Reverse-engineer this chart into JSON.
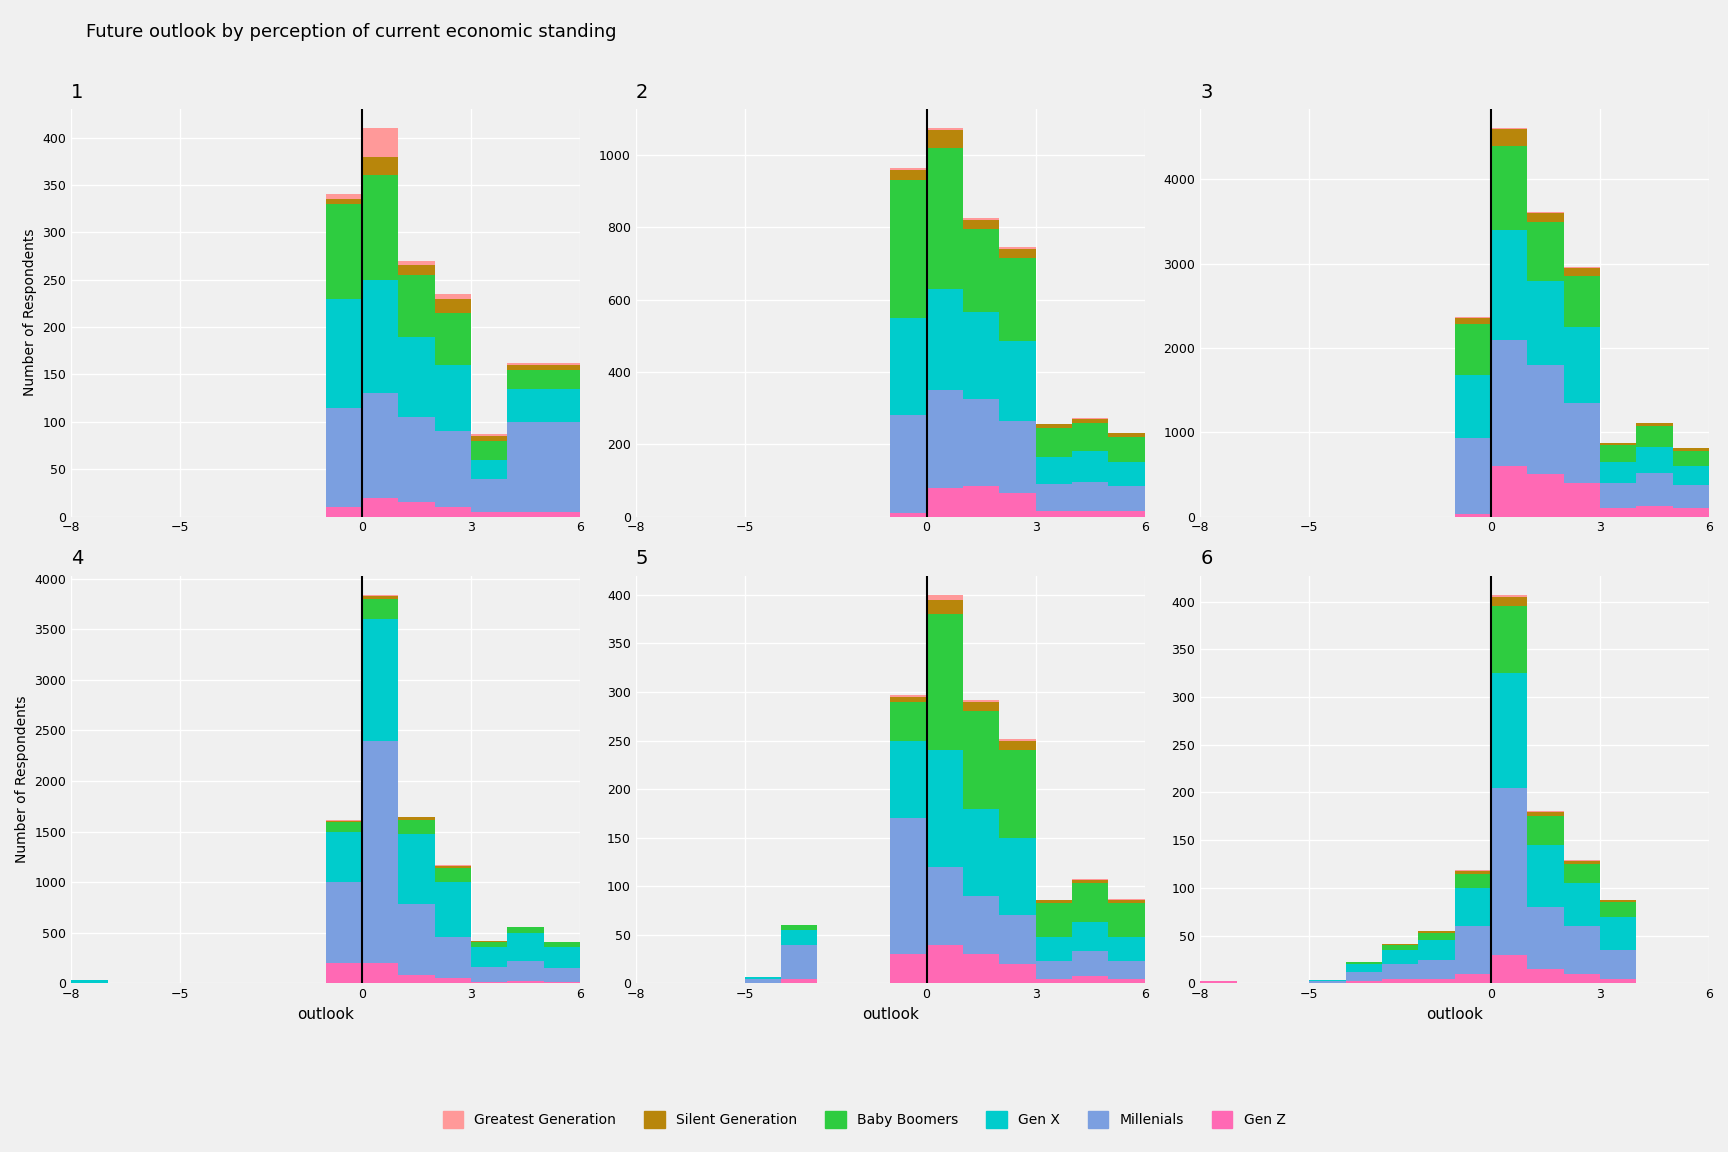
{
  "title": "Future outlook by perception of current economic standing",
  "xlabel": "outlook",
  "ylabel": "Number of Respondents",
  "background_color": "#F0F0F0",
  "grid_color": "#FFFFFF",
  "xlim": [
    -8,
    6
  ],
  "xticks": [
    -8,
    -5,
    0,
    3,
    6
  ],
  "colors": {
    "Gen Z": "#FF69B4",
    "Millenials": "#7B9FE0",
    "Gen X": "#00CCCC",
    "Baby Boomers": "#2ECC40",
    "Silent Generation": "#B8860B",
    "Greatest Generation": "#FF9999"
  },
  "generations_order": [
    "Gen Z",
    "Millenials",
    "Gen X",
    "Baby Boomers",
    "Silent Generation",
    "Greatest Generation"
  ],
  "panel_data": {
    "1": {
      "bins": [
        -1,
        0,
        1,
        2,
        3,
        4,
        5
      ],
      "Gen Z": [
        10,
        20,
        15,
        10,
        5,
        5,
        5
      ],
      "Millenials": [
        105,
        110,
        90,
        80,
        35,
        95,
        95
      ],
      "Gen X": [
        115,
        120,
        85,
        70,
        20,
        35,
        35
      ],
      "Baby Boomers": [
        100,
        110,
        65,
        55,
        20,
        20,
        20
      ],
      "Silent Generation": [
        5,
        20,
        10,
        15,
        5,
        5,
        5
      ],
      "Greatest Generation": [
        5,
        30,
        5,
        5,
        2,
        2,
        2
      ]
    },
    "2": {
      "bins": [
        -1,
        0,
        1,
        2,
        3,
        4,
        5
      ],
      "Gen Z": [
        10,
        80,
        85,
        65,
        15,
        15,
        15
      ],
      "Millenials": [
        270,
        270,
        240,
        200,
        75,
        80,
        70
      ],
      "Gen X": [
        270,
        280,
        240,
        220,
        75,
        85,
        65
      ],
      "Baby Boomers": [
        380,
        390,
        230,
        230,
        80,
        80,
        70
      ],
      "Silent Generation": [
        30,
        50,
        25,
        25,
        10,
        10,
        10
      ],
      "Greatest Generation": [
        5,
        5,
        5,
        5,
        2,
        2,
        2
      ]
    },
    "3": {
      "bins": [
        -1,
        0,
        1,
        2,
        3,
        4,
        5
      ],
      "Gen Z": [
        30,
        600,
        500,
        400,
        100,
        120,
        100
      ],
      "Millenials": [
        900,
        1500,
        1300,
        950,
        300,
        400,
        280
      ],
      "Gen X": [
        750,
        1300,
        1000,
        900,
        250,
        300,
        220
      ],
      "Baby Boomers": [
        600,
        1000,
        700,
        600,
        200,
        250,
        180
      ],
      "Silent Generation": [
        80,
        200,
        100,
        100,
        25,
        40,
        30
      ],
      "Greatest Generation": [
        10,
        10,
        10,
        10,
        3,
        5,
        5
      ]
    },
    "4": {
      "bins": [
        -8,
        -1,
        0,
        1,
        2,
        3,
        4,
        5
      ],
      "Gen Z": [
        0,
        200,
        200,
        80,
        55,
        12,
        20,
        10
      ],
      "Millenials": [
        5,
        800,
        2200,
        700,
        400,
        150,
        200,
        145
      ],
      "Gen X": [
        25,
        500,
        1200,
        700,
        550,
        200,
        280,
        200
      ],
      "Baby Boomers": [
        5,
        100,
        200,
        140,
        140,
        45,
        55,
        50
      ],
      "Silent Generation": [
        0,
        10,
        30,
        20,
        20,
        8,
        5,
        5
      ],
      "Greatest Generation": [
        0,
        5,
        10,
        5,
        5,
        2,
        2,
        2
      ]
    },
    "5": {
      "bins": [
        -5,
        -4,
        -1,
        0,
        1,
        2,
        3,
        4,
        5
      ],
      "Gen Z": [
        0,
        5,
        30,
        40,
        30,
        20,
        5,
        8,
        5
      ],
      "Millenials": [
        5,
        35,
        140,
        80,
        60,
        50,
        18,
        25,
        18
      ],
      "Gen X": [
        2,
        15,
        80,
        120,
        90,
        80,
        25,
        30,
        25
      ],
      "Baby Boomers": [
        0,
        5,
        40,
        140,
        100,
        90,
        35,
        40,
        35
      ],
      "Silent Generation": [
        0,
        0,
        5,
        15,
        10,
        10,
        3,
        3,
        3
      ],
      "Greatest Generation": [
        0,
        0,
        2,
        5,
        2,
        2,
        0,
        1,
        1
      ]
    },
    "6": {
      "bins": [
        -8,
        -5,
        -4,
        -3,
        -2,
        -1,
        0,
        1,
        2,
        3
      ],
      "Gen Z": [
        2,
        0,
        2,
        5,
        5,
        10,
        30,
        15,
        10,
        5
      ],
      "Millenials": [
        0,
        2,
        10,
        15,
        20,
        50,
        175,
        65,
        50,
        30
      ],
      "Gen X": [
        0,
        2,
        8,
        15,
        20,
        40,
        120,
        65,
        45,
        35
      ],
      "Baby Boomers": [
        0,
        0,
        2,
        5,
        8,
        15,
        70,
        30,
        20,
        15
      ],
      "Silent Generation": [
        0,
        0,
        0,
        1,
        2,
        3,
        10,
        5,
        3,
        2
      ],
      "Greatest Generation": [
        0,
        0,
        0,
        0,
        0,
        1,
        2,
        1,
        1,
        0
      ]
    }
  }
}
